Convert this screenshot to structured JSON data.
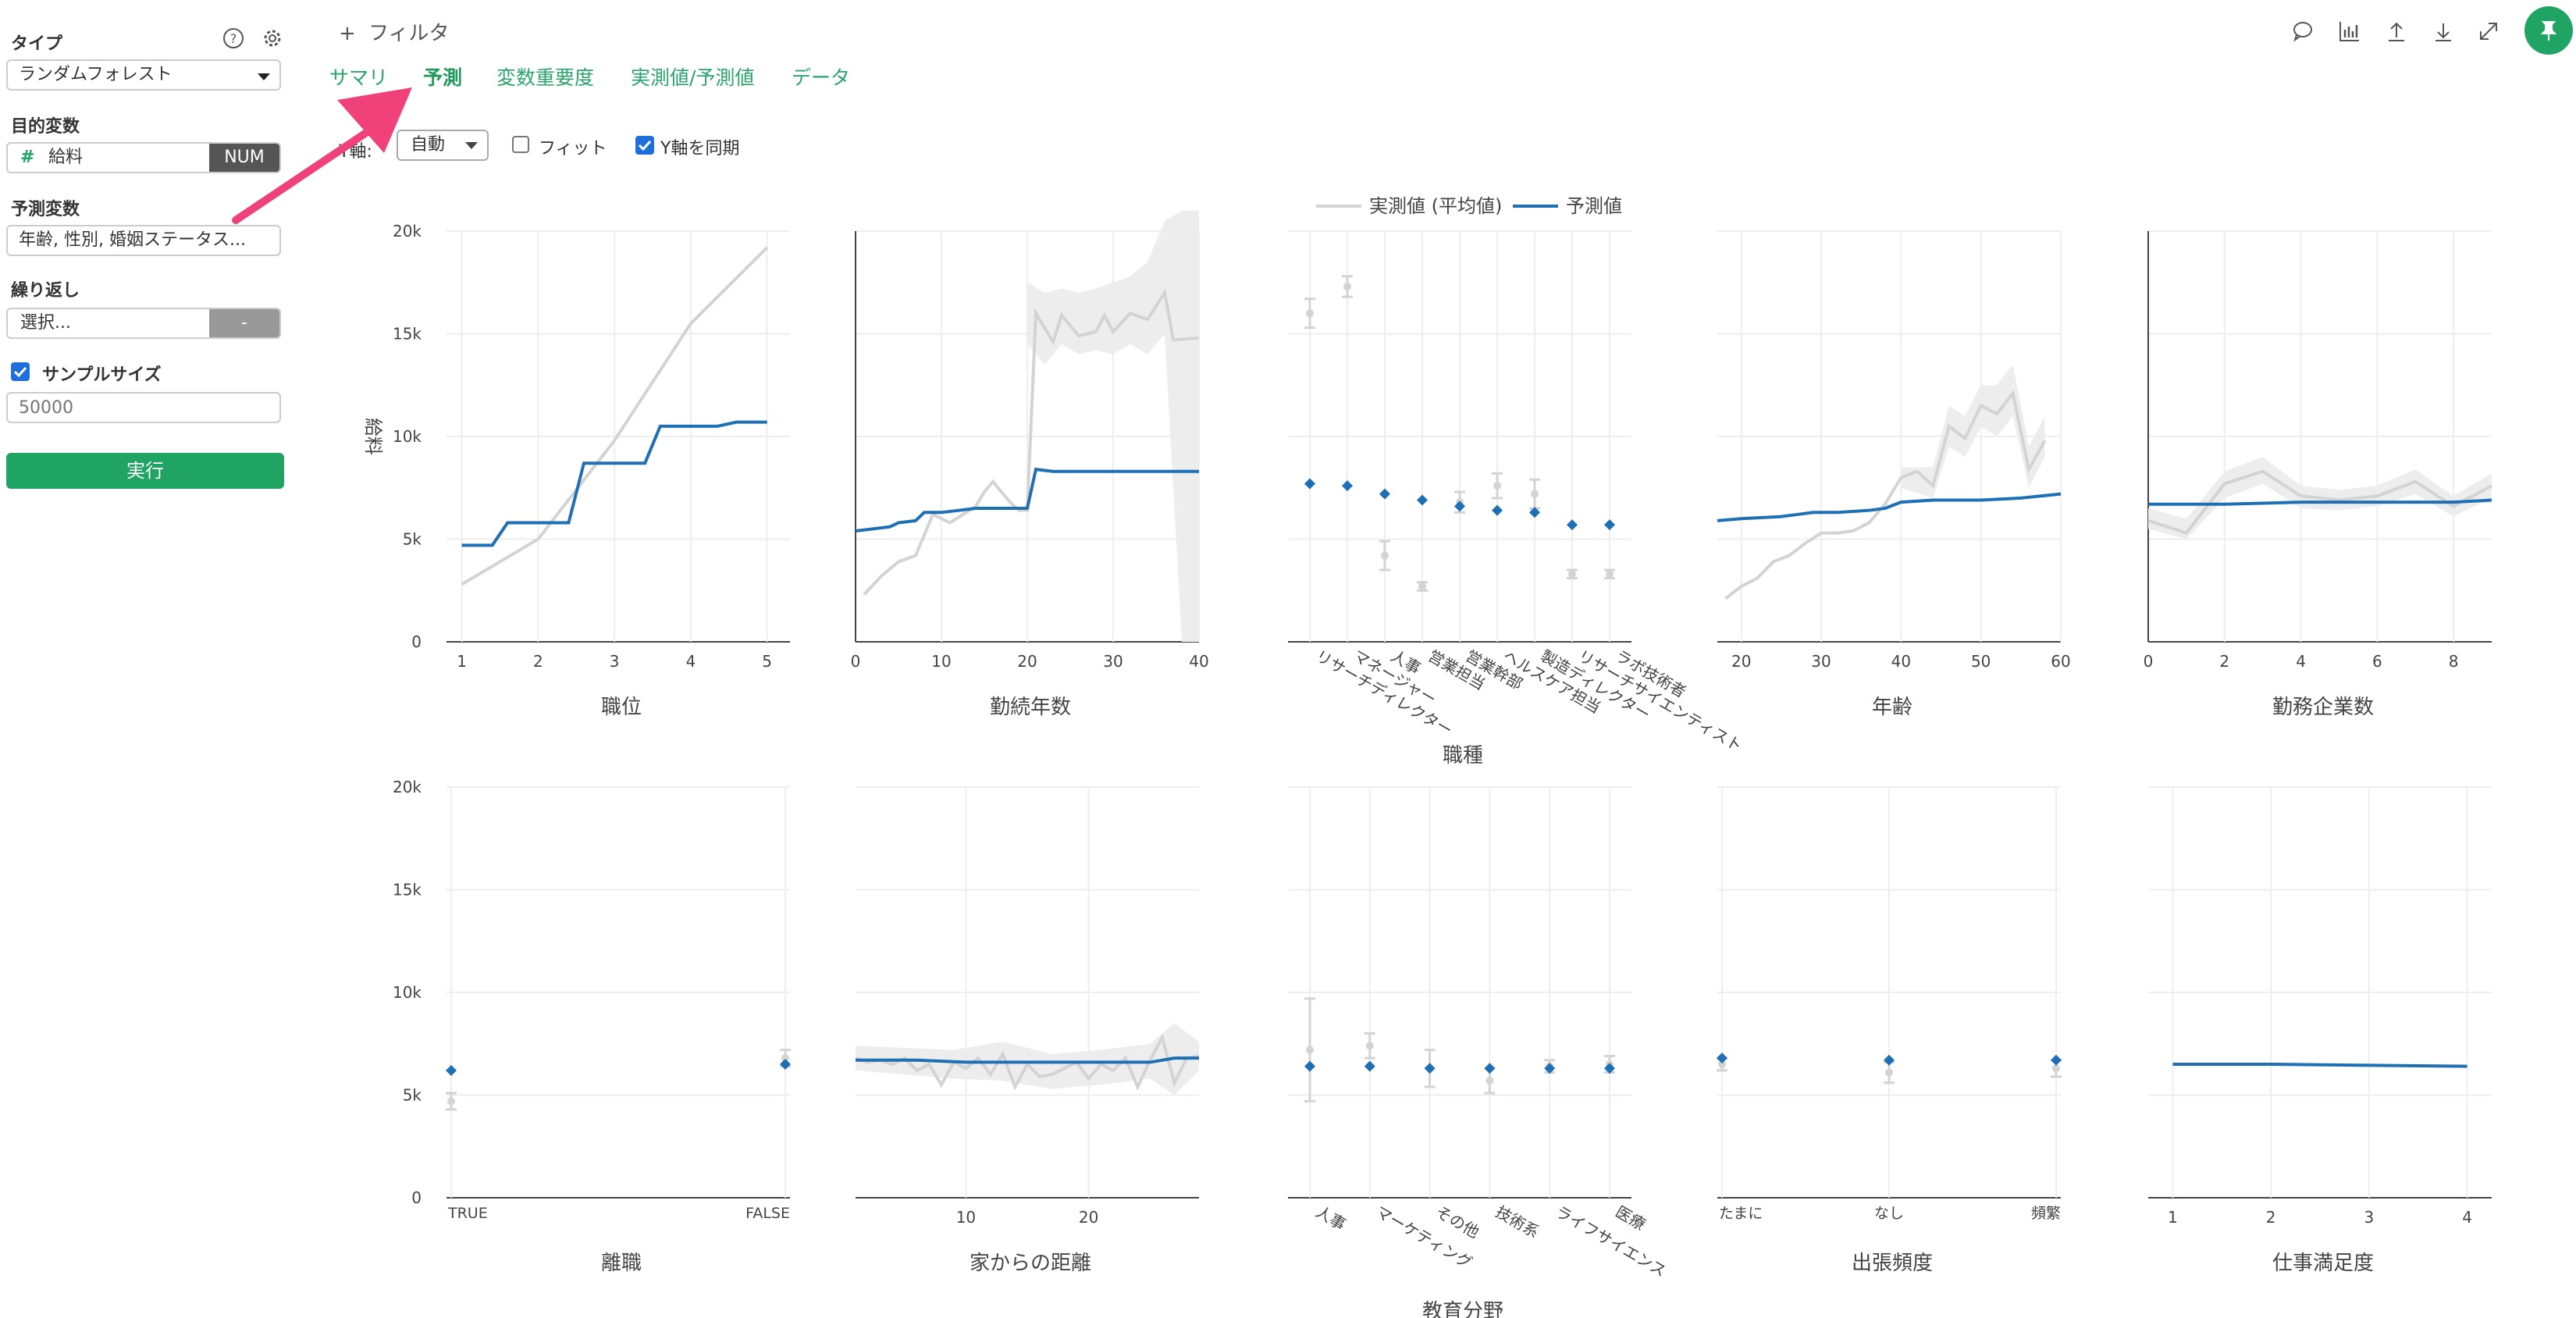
{
  "sidebar": {
    "type_label": "タイプ",
    "type_value": "ランダムフォレスト",
    "target_label": "目的変数",
    "target_hash": "#",
    "target_value": "給料",
    "target_badge": "NUM",
    "predictors_label": "予測変数",
    "predictors_value": "年齢, 性別, 婚姻ステータス...",
    "repeat_label": "繰り返し",
    "repeat_value": "選択...",
    "repeat_button": "-",
    "sample_label": "サンプルサイズ",
    "sample_checked": true,
    "sample_placeholder": "50000",
    "run_label": "実行"
  },
  "header": {
    "filter_plus": "+",
    "filter_label": "フィルタ"
  },
  "tabs": [
    "サマリ",
    "予測",
    "変数重要度",
    "実測値/予測値",
    "データ"
  ],
  "active_tab": 1,
  "options": {
    "select_prefix": "Y軸:",
    "select_value": "自動",
    "fit_label": "フィット",
    "fit_checked": false,
    "sync_label": "Y軸を同期",
    "sync_checked": true
  },
  "colors": {
    "accent": "#1fa463",
    "predicted": "#1f6fb4",
    "actual": "#d3d3d3",
    "band": "#ededed",
    "arrow": "#f0417a"
  },
  "chart_data": {
    "type": "line",
    "legend": [
      "実測値 (平均値)",
      "予測値"
    ],
    "legend_position": "top-center",
    "ylabel": "給料",
    "ylim": [
      0,
      20000
    ],
    "yticks": [
      0,
      5000,
      10000,
      15000,
      20000
    ],
    "ytick_labels": [
      "0",
      "5k",
      "10k",
      "15k",
      "20k"
    ],
    "rows": [
      [
        {
          "kind": "line",
          "xlabel": "職位",
          "xlim": [
            0.8,
            5.3
          ],
          "xticks": [
            1,
            2,
            3,
            4,
            5
          ],
          "actual": [
            [
              1,
              2800
            ],
            [
              2,
              5000
            ],
            [
              3,
              9800
            ],
            [
              4,
              15500
            ],
            [
              5,
              19200
            ]
          ],
          "predicted": [
            [
              1,
              4700
            ],
            [
              1.4,
              4700
            ],
            [
              1.6,
              5800
            ],
            [
              2.4,
              5800
            ],
            [
              2.6,
              8700
            ],
            [
              3.4,
              8700
            ],
            [
              3.6,
              10500
            ],
            [
              4.35,
              10500
            ],
            [
              4.6,
              10700
            ],
            [
              5,
              10700
            ]
          ],
          "band": []
        },
        {
          "kind": "line",
          "xlabel": "勤続年数",
          "xlim": [
            0,
            40
          ],
          "xticks": [
            0,
            10,
            20,
            30,
            40
          ],
          "actual": [
            [
              1,
              2300
            ],
            [
              3,
              3200
            ],
            [
              5,
              3900
            ],
            [
              7,
              4200
            ],
            [
              9,
              6200
            ],
            [
              11,
              5800
            ],
            [
              14,
              6600
            ],
            [
              15,
              7300
            ],
            [
              16,
              7800
            ],
            [
              18,
              6800
            ],
            [
              19,
              6400
            ],
            [
              20,
              6400
            ],
            [
              21,
              16000
            ],
            [
              23,
              14600
            ],
            [
              24,
              15900
            ],
            [
              26,
              14900
            ],
            [
              28,
              15100
            ],
            [
              29,
              15900
            ],
            [
              30,
              15100
            ],
            [
              32,
              16000
            ],
            [
              34,
              15700
            ],
            [
              36,
              17000
            ],
            [
              37,
              14700
            ],
            [
              40,
              14800
            ]
          ],
          "predicted": [
            [
              0,
              5400
            ],
            [
              2,
              5500
            ],
            [
              4,
              5600
            ],
            [
              5,
              5800
            ],
            [
              7,
              5900
            ],
            [
              8,
              6300
            ],
            [
              10,
              6300
            ],
            [
              12,
              6400
            ],
            [
              14,
              6500
            ],
            [
              16,
              6500
            ],
            [
              18,
              6500
            ],
            [
              20,
              6500
            ],
            [
              21,
              8400
            ],
            [
              23,
              8300
            ],
            [
              40,
              8300
            ]
          ],
          "band": [
            [
              20,
              14500,
              17500
            ],
            [
              22,
              13500,
              17000
            ],
            [
              24,
              14500,
              17200
            ],
            [
              26,
              14000,
              17000
            ],
            [
              28,
              14200,
              17200
            ],
            [
              30,
              14000,
              17500
            ],
            [
              32,
              14500,
              17800
            ],
            [
              34,
              14000,
              18500
            ],
            [
              36,
              15000,
              20500
            ],
            [
              38,
              0,
              21000
            ],
            [
              40,
              0,
              21000
            ]
          ]
        },
        {
          "kind": "cat",
          "xlabel": "職種",
          "categories": [
            "リサーチディレクター",
            "マネージャー",
            "人事",
            "営業担当",
            "営業幹部",
            "ヘルスケア担当",
            "製造ディレクター",
            "リサーチサイエンティスト",
            "ラボ技術者"
          ],
          "actual": [
            16000,
            17300,
            4200,
            2700,
            6800,
            7600,
            7200,
            3300,
            3300
          ],
          "actual_err": [
            700,
            500,
            700,
            200,
            500,
            600,
            700,
            200,
            200
          ],
          "predicted": [
            7700,
            7600,
            7200,
            6900,
            6600,
            6400,
            6300,
            5700,
            5700
          ]
        },
        {
          "kind": "line",
          "xlabel": "年齢",
          "xlim": [
            17,
            60
          ],
          "xticks": [
            20,
            30,
            40,
            50,
            60
          ],
          "actual": [
            [
              18,
              2100
            ],
            [
              20,
              2700
            ],
            [
              22,
              3100
            ],
            [
              24,
              3900
            ],
            [
              26,
              4200
            ],
            [
              28,
              4800
            ],
            [
              30,
              5300
            ],
            [
              32,
              5300
            ],
            [
              34,
              5400
            ],
            [
              36,
              5800
            ],
            [
              38,
              6700
            ],
            [
              40,
              8000
            ],
            [
              42,
              8300
            ],
            [
              44,
              7600
            ],
            [
              46,
              10500
            ],
            [
              48,
              9900
            ],
            [
              50,
              11500
            ],
            [
              52,
              11100
            ],
            [
              54,
              12100
            ],
            [
              56,
              8400
            ],
            [
              58,
              9800
            ]
          ],
          "predicted": [
            [
              17,
              5900
            ],
            [
              20,
              6000
            ],
            [
              25,
              6100
            ],
            [
              27,
              6200
            ],
            [
              29,
              6300
            ],
            [
              32,
              6300
            ],
            [
              36,
              6400
            ],
            [
              38,
              6500
            ],
            [
              40,
              6800
            ],
            [
              44,
              6900
            ],
            [
              50,
              6900
            ],
            [
              55,
              7000
            ],
            [
              60,
              7200
            ]
          ],
          "band": [
            [
              40,
              7500,
              8500
            ],
            [
              44,
              7000,
              8500
            ],
            [
              46,
              9500,
              11500
            ],
            [
              48,
              9000,
              11000
            ],
            [
              50,
              10500,
              12500
            ],
            [
              52,
              10000,
              12500
            ],
            [
              54,
              11000,
              13500
            ],
            [
              56,
              7500,
              9500
            ],
            [
              58,
              9000,
              11000
            ]
          ]
        },
        {
          "kind": "line",
          "xlabel": "勤務企業数",
          "xlim": [
            0,
            9
          ],
          "xticks": [
            0,
            2,
            4,
            6,
            8
          ],
          "actual": [
            [
              0,
              5900
            ],
            [
              1,
              5300
            ],
            [
              2,
              7700
            ],
            [
              3,
              8300
            ],
            [
              4,
              7100
            ],
            [
              5,
              6900
            ],
            [
              6,
              7100
            ],
            [
              7,
              7800
            ],
            [
              8,
              6600
            ],
            [
              9,
              7600
            ]
          ],
          "predicted": [
            [
              0,
              6700
            ],
            [
              2,
              6700
            ],
            [
              4,
              6800
            ],
            [
              6,
              6800
            ],
            [
              8,
              6800
            ],
            [
              9,
              6900
            ]
          ],
          "band": [
            [
              0,
              5500,
              6500
            ],
            [
              1,
              5000,
              6000
            ],
            [
              2,
              7000,
              8300
            ],
            [
              3,
              7700,
              9000
            ],
            [
              4,
              6500,
              7600
            ],
            [
              5,
              6400,
              7400
            ],
            [
              6,
              6600,
              7600
            ],
            [
              7,
              7200,
              8400
            ],
            [
              8,
              6100,
              7100
            ],
            [
              9,
              7000,
              8200
            ]
          ]
        }
      ],
      [
        {
          "kind": "cat",
          "xlabel": "離職",
          "categories": [
            "TRUE",
            "FALSE"
          ],
          "edge": true,
          "actual": [
            4700,
            6800
          ],
          "actual_err": [
            400,
            400
          ],
          "predicted": [
            6200,
            6500
          ]
        },
        {
          "kind": "line",
          "xlabel": "家からの距離",
          "xlim": [
            1,
            29
          ],
          "xticks": [
            10,
            20
          ],
          "actual": [
            [
              1,
              6800
            ],
            [
              2,
              6600
            ],
            [
              3,
              6700
            ],
            [
              4,
              6500
            ],
            [
              5,
              6800
            ],
            [
              6,
              6200
            ],
            [
              7,
              6500
            ],
            [
              8,
              5500
            ],
            [
              9,
              6600
            ],
            [
              10,
              6300
            ],
            [
              11,
              6800
            ],
            [
              12,
              6000
            ],
            [
              13,
              7000
            ],
            [
              14,
              5400
            ],
            [
              15,
              6500
            ],
            [
              16,
              5900
            ],
            [
              17,
              6000
            ],
            [
              18,
              6300
            ],
            [
              19,
              6600
            ],
            [
              20,
              5800
            ],
            [
              21,
              6500
            ],
            [
              22,
              6200
            ],
            [
              23,
              6800
            ],
            [
              24,
              5400
            ],
            [
              25,
              6700
            ],
            [
              26,
              7800
            ],
            [
              27,
              5600
            ],
            [
              28,
              6800
            ],
            [
              29,
              6900
            ]
          ],
          "predicted": [
            [
              1,
              6700
            ],
            [
              3,
              6700
            ],
            [
              6,
              6700
            ],
            [
              10,
              6600
            ],
            [
              15,
              6600
            ],
            [
              20,
              6600
            ],
            [
              25,
              6600
            ],
            [
              27,
              6800
            ],
            [
              29,
              6800
            ]
          ],
          "band": [
            [
              1,
              6200,
              7400
            ],
            [
              5,
              6000,
              7300
            ],
            [
              9,
              5800,
              7200
            ],
            [
              13,
              5700,
              7600
            ],
            [
              17,
              5300,
              7000
            ],
            [
              21,
              5500,
              7200
            ],
            [
              25,
              5800,
              7500
            ],
            [
              27,
              5000,
              8500
            ],
            [
              29,
              6200,
              7600
            ]
          ]
        },
        {
          "kind": "cat",
          "xlabel": "教育分野",
          "categories": [
            "人事",
            "マーケティング",
            "その他",
            "技術系",
            "ライフサイエンス",
            "医療"
          ],
          "actual": [
            7200,
            7400,
            6300,
            5700,
            6400,
            6500
          ],
          "actual_err": [
            2500,
            600,
            900,
            600,
            300,
            400
          ],
          "predicted": [
            6400,
            6400,
            6300,
            6300,
            6300,
            6300
          ]
        },
        {
          "kind": "cat",
          "xlabel": "出張頻度",
          "categories": [
            "たまに",
            "なし",
            "頻繁"
          ],
          "edge": true,
          "actual": [
            6500,
            6100,
            6300
          ],
          "actual_err": [
            300,
            500,
            400
          ],
          "predicted": [
            6800,
            6700,
            6700
          ]
        },
        {
          "kind": "line",
          "xlabel": "仕事満足度",
          "xlim": [
            0.75,
            4.25
          ],
          "xticks": [
            1,
            2,
            3,
            4
          ],
          "actual": [],
          "predicted": [
            [
              1,
              6500
            ],
            [
              2,
              6500
            ],
            [
              3,
              6450
            ],
            [
              4,
              6400
            ]
          ],
          "band": []
        }
      ]
    ]
  }
}
